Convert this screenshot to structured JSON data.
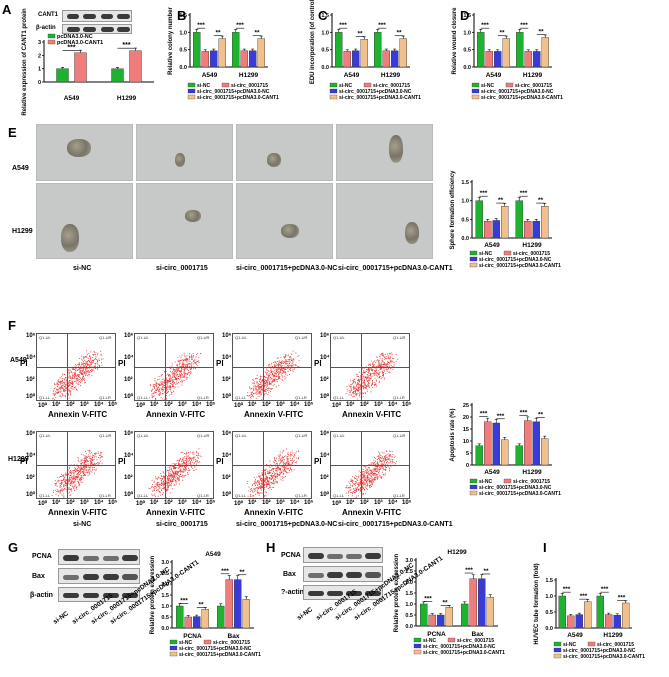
{
  "panels": {
    "A": "A",
    "B": "B",
    "C": "C",
    "D": "D",
    "E": "E",
    "F": "F",
    "G": "G",
    "H": "H",
    "I": "I"
  },
  "colors": {
    "green": "#1db32e",
    "pink": "#f07c7c",
    "blue": "#3a3ad9",
    "orange": "#f2c08c"
  },
  "A": {
    "blot_labels": [
      "CANT1",
      "β-actin"
    ],
    "legend": [
      "pcDNA3.0-NC",
      "pcDNA3.0-CANT1"
    ],
    "ylabel": "Relative expression of CANT1 protein",
    "sig": [
      "***",
      "***"
    ]
  },
  "legend4": [
    "si-NC",
    "si-circ_0001715",
    "si-circ_0001715+pcDNA3.0-NC",
    "si-circ_0001715+pcDNA3.0-CANT1"
  ],
  "sig_pair": [
    "***",
    "**"
  ],
  "E": {
    "rows": [
      "A549",
      "H1299"
    ],
    "cols": [
      "si-NC",
      "si-circ_0001715",
      "si-circ_0001715+pcDNA3.0-NC",
      "si-circ_0001715+pcDNA3.0-CANT1"
    ]
  },
  "F": {
    "rows": [
      "A549",
      "H1299"
    ],
    "xlabel": "Annexin V-FITC",
    "ylabel": "PI",
    "quad": [
      "Q1-UL",
      "Q1-UR",
      "Q1-LL",
      "Q1-LR"
    ],
    "ticks": [
      "10⁰",
      "10¹",
      "10²",
      "10³",
      "10⁴",
      "10⁵",
      "10⁶"
    ],
    "cols": [
      "si-NC",
      "si-circ_0001715",
      "si-circ_0001715+pcDNA3.0-NC",
      "si-circ_0001715+pcDNA3.0-CANT1"
    ]
  },
  "G": {
    "blot_labels": [
      "PCNA",
      "Bax",
      "β-actin"
    ],
    "lanes": [
      "si-NC",
      "si-circ_0001715",
      "si-circ_0001715+pcDNA3.0-NC",
      "si-circ_0001715+pcDNA3.0-CANT1"
    ]
  },
  "H": {
    "blot_labels": [
      "PCNA",
      "Bax",
      "?-actin"
    ],
    "lanes": [
      "si-NC",
      "si-circ_0001715",
      "si-circ_0001715+pcDNA3.0-NC",
      "si-circ_0001715+pcDNA3.0-CANT1"
    ]
  },
  "chart_data": [
    {
      "id": "A",
      "type": "bar",
      "categories": [
        "A549",
        "H1299"
      ],
      "series": [
        {
          "name": "pcDNA3.0-NC",
          "values": [
            1.0,
            1.0
          ]
        },
        {
          "name": "pcDNA3.0-CANT1",
          "values": [
            2.2,
            2.35
          ]
        }
      ],
      "ylim": [
        0,
        3
      ],
      "yticks": [
        0,
        1,
        2,
        3
      ],
      "ylabel": "Relative expression of CANT1 protein"
    },
    {
      "id": "B",
      "type": "bar",
      "categories": [
        "A549",
        "H1299"
      ],
      "series": [
        {
          "name": "si-NC",
          "values": [
            1.0,
            1.0
          ]
        },
        {
          "name": "si-circ_0001715",
          "values": [
            0.45,
            0.47
          ]
        },
        {
          "name": "si-circ_0001715+pcDNA3.0-NC",
          "values": [
            0.47,
            0.47
          ]
        },
        {
          "name": "si-circ_0001715+pcDNA3.0-CANT1",
          "values": [
            0.82,
            0.82
          ]
        }
      ],
      "ylim": [
        0,
        1.5
      ],
      "yticks": [
        0.0,
        0.5,
        1.0,
        1.5
      ],
      "ylabel": "Relative colony number"
    },
    {
      "id": "C",
      "type": "bar",
      "categories": [
        "A549",
        "H1299"
      ],
      "series": [
        {
          "name": "si-NC",
          "values": [
            1.0,
            1.0
          ]
        },
        {
          "name": "si-circ_0001715",
          "values": [
            0.45,
            0.47
          ]
        },
        {
          "name": "si-circ_0001715+pcDNA3.0-NC",
          "values": [
            0.47,
            0.47
          ]
        },
        {
          "name": "si-circ_0001715+pcDNA3.0-CANT1",
          "values": [
            0.8,
            0.82
          ]
        }
      ],
      "ylim": [
        0,
        1.5
      ],
      "yticks": [
        0.0,
        0.5,
        1.0,
        1.5
      ],
      "ylabel": "EDU incorporation (of control)"
    },
    {
      "id": "D",
      "type": "bar",
      "categories": [
        "A549",
        "H1299"
      ],
      "series": [
        {
          "name": "si-NC",
          "values": [
            1.0,
            1.0
          ]
        },
        {
          "name": "si-circ_0001715",
          "values": [
            0.45,
            0.45
          ]
        },
        {
          "name": "si-circ_0001715+pcDNA3.0-NC",
          "values": [
            0.45,
            0.45
          ]
        },
        {
          "name": "si-circ_0001715+pcDNA3.0-CANT1",
          "values": [
            0.82,
            0.85
          ]
        }
      ],
      "ylim": [
        0,
        1.5
      ],
      "yticks": [
        0.0,
        0.5,
        1.0,
        1.5
      ],
      "ylabel": "Relative wound closure"
    },
    {
      "id": "E",
      "type": "bar",
      "categories": [
        "A549",
        "H1299"
      ],
      "series": [
        {
          "name": "si-NC",
          "values": [
            1.0,
            1.0
          ]
        },
        {
          "name": "si-circ_0001715",
          "values": [
            0.45,
            0.45
          ]
        },
        {
          "name": "si-circ_0001715+pcDNA3.0-NC",
          "values": [
            0.47,
            0.45
          ]
        },
        {
          "name": "si-circ_0001715+pcDNA3.0-CANT1",
          "values": [
            0.85,
            0.85
          ]
        }
      ],
      "ylim": [
        0,
        1.5
      ],
      "yticks": [
        0.0,
        0.5,
        1.0,
        1.5
      ],
      "ylabel": "Sphere formation efficiency"
    },
    {
      "id": "F",
      "type": "bar",
      "categories": [
        "A549",
        "H1299"
      ],
      "series": [
        {
          "name": "si-NC",
          "values": [
            8,
            8
          ]
        },
        {
          "name": "si-circ_0001715",
          "values": [
            18,
            18.5
          ]
        },
        {
          "name": "si-circ_0001715+pcDNA3.0-NC",
          "values": [
            17.5,
            18
          ]
        },
        {
          "name": "si-circ_0001715+pcDNA3.0-CANT1",
          "values": [
            10.5,
            11
          ]
        }
      ],
      "ylim": [
        0,
        25
      ],
      "yticks": [
        0,
        5,
        10,
        15,
        20,
        25
      ],
      "ylabel": "Apoptosis rate (%)"
    },
    {
      "id": "G",
      "type": "bar",
      "title": "A549",
      "categories": [
        "PCNA",
        "Bax"
      ],
      "series": [
        {
          "name": "si-NC",
          "values": [
            1.0,
            1.0
          ]
        },
        {
          "name": "si-circ_0001715",
          "values": [
            0.5,
            2.2
          ]
        },
        {
          "name": "si-circ_0001715+pcDNA3.0-NC",
          "values": [
            0.52,
            2.2
          ]
        },
        {
          "name": "si-circ_0001715+pcDNA3.0-CANT1",
          "values": [
            0.85,
            1.3
          ]
        }
      ],
      "ylim": [
        0,
        3.0
      ],
      "yticks": [
        0.0,
        0.5,
        1.0,
        1.5,
        2.0,
        2.5,
        3.0
      ],
      "ylabel": "Relative protein expression"
    },
    {
      "id": "H",
      "type": "bar",
      "title": "H1299",
      "categories": [
        "PCNA",
        "Bax"
      ],
      "series": [
        {
          "name": "si-NC",
          "values": [
            1.0,
            1.0
          ]
        },
        {
          "name": "si-circ_0001715",
          "values": [
            0.5,
            2.15
          ]
        },
        {
          "name": "si-circ_0001715+pcDNA3.0-NC",
          "values": [
            0.5,
            2.15
          ]
        },
        {
          "name": "si-circ_0001715+pcDNA3.0-CANT1",
          "values": [
            0.85,
            1.3
          ]
        }
      ],
      "ylim": [
        0,
        3.0
      ],
      "yticks": [
        0.0,
        0.5,
        1.0,
        1.5,
        2.0,
        2.5,
        3.0
      ],
      "ylabel": "Relative protein expression"
    },
    {
      "id": "I",
      "type": "bar",
      "categories": [
        "A549",
        "H1299"
      ],
      "series": [
        {
          "name": "si-NC",
          "values": [
            1.0,
            1.0
          ]
        },
        {
          "name": "si-circ_0001715",
          "values": [
            0.38,
            0.42
          ]
        },
        {
          "name": "si-circ_0001715+pcDNA3.0-NC",
          "values": [
            0.42,
            0.4
          ]
        },
        {
          "name": "si-circ_0001715+pcDNA3.0-CANT1",
          "values": [
            0.82,
            0.78
          ]
        }
      ],
      "ylim": [
        0,
        1.5
      ],
      "yticks": [
        0.0,
        0.5,
        1.0,
        1.5
      ],
      "ylabel": "HUVEC tube formation (fold)"
    }
  ]
}
